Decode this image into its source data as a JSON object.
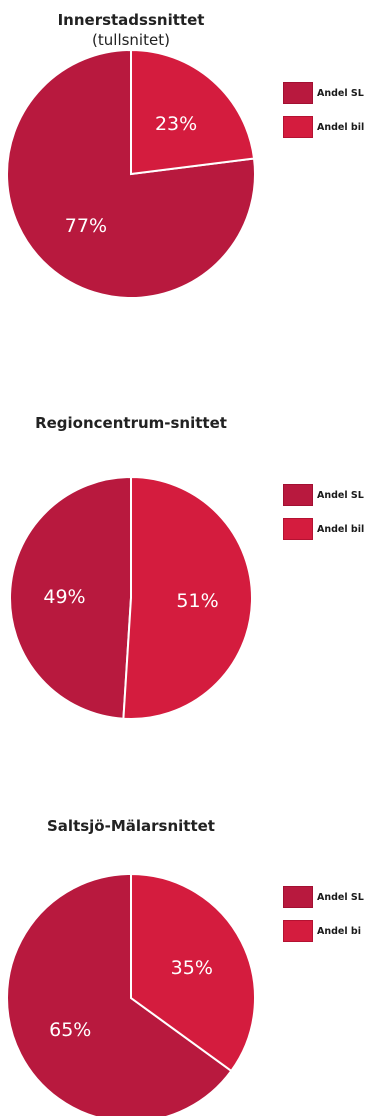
{
  "colors": {
    "sl": "#b8193e",
    "bil": "#d41c3e",
    "divider": "#ffffff"
  },
  "chart_data": [
    {
      "type": "pie",
      "title": "Innerstadssnittet",
      "subtitle": "(tullsnitet)",
      "slices": [
        {
          "label": "Andel SL",
          "value": 77,
          "text": "77%"
        },
        {
          "label": "Andel bil",
          "value": 23,
          "text": "23%"
        }
      ],
      "legend": [
        "Andel SL",
        "Andel bil"
      ],
      "legend_position": "right"
    },
    {
      "type": "pie",
      "title": "Regioncentrum-snittet",
      "slices": [
        {
          "label": "Andel SL",
          "value": 49,
          "text": "49%"
        },
        {
          "label": "Andel bil",
          "value": 51,
          "text": "51%"
        }
      ],
      "legend": [
        "Andel SL",
        "Andel bil"
      ],
      "legend_position": "right"
    },
    {
      "type": "pie",
      "title": "Saltsjö-Mälarsnittet",
      "slices": [
        {
          "label": "Andel SL",
          "value": 65,
          "text": "65%"
        },
        {
          "label": "Andel bil",
          "value": 35,
          "text": "35%"
        }
      ],
      "legend": [
        "Andel SL",
        "Andel bi"
      ],
      "legend_position": "right"
    }
  ]
}
